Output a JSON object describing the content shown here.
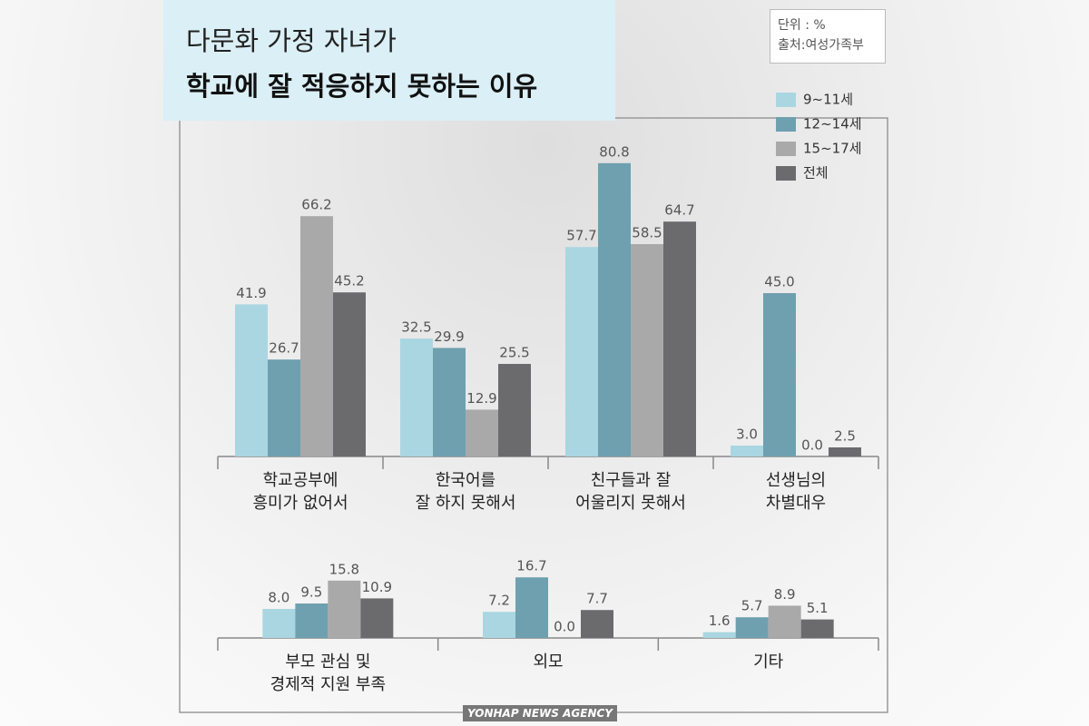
{
  "header": {
    "title_line1": "다문화 가정 자녀가",
    "title_line2": "학교에 잘 적응하지 못하는 이유",
    "unit": "단위 : %",
    "source": "출처:여성가족부"
  },
  "credit": "YONHAP NEWS AGENCY",
  "chart_data": [
    {
      "type": "bar",
      "categories": [
        "학교공부에\n흥미가 없어서",
        "한국어를\n잘 하지 못해서",
        "친구들과 잘\n어울리지 못해서",
        "선생님의\n차별대우"
      ],
      "series": [
        {
          "name": "9~11세",
          "color": "#a9d6e1",
          "values": [
            41.9,
            32.5,
            57.7,
            3.0
          ],
          "value_labels": [
            "41.9",
            "32.5",
            "57.7",
            "3.0"
          ]
        },
        {
          "name": "12~14세",
          "color": "#6fa0af",
          "values": [
            26.7,
            29.9,
            80.8,
            45.0
          ],
          "value_labels": [
            "26.7",
            "29.9",
            "80.8",
            "45.0"
          ]
        },
        {
          "name": "15~17세",
          "color": "#a9a9a9",
          "values": [
            66.2,
            12.9,
            58.5,
            0.0
          ],
          "value_labels": [
            "66.2",
            "12.9",
            "58.5",
            "0.0"
          ]
        },
        {
          "name": "전체",
          "color": "#6b6b6e",
          "values": [
            45.2,
            25.5,
            64.7,
            2.5
          ],
          "value_labels": [
            "45.2",
            "25.5",
            "64.7",
            "2.5"
          ]
        }
      ],
      "ylim": [
        0,
        85
      ],
      "legend": "upper right"
    },
    {
      "type": "bar",
      "categories": [
        "부모 관심 및\n경제적 지원 부족",
        "외모",
        "기타"
      ],
      "series": [
        {
          "color": "#a9d6e1",
          "values": [
            8.0,
            7.2,
            1.6
          ],
          "value_labels": [
            "8.0",
            "7.2",
            "1.6"
          ]
        },
        {
          "color": "#6fa0af",
          "values": [
            9.5,
            16.7,
            5.7
          ],
          "value_labels": [
            "9.5",
            "16.7",
            "5.7"
          ]
        },
        {
          "color": "#a9a9a9",
          "values": [
            15.8,
            0.0,
            8.9
          ],
          "value_labels": [
            "15.8",
            "0.0",
            "8.9"
          ]
        },
        {
          "color": "#6b6b6e",
          "values": [
            10.9,
            7.7,
            5.1
          ],
          "value_labels": [
            "10.9",
            "7.7",
            "5.1"
          ]
        }
      ],
      "ylim": [
        0,
        20
      ]
    }
  ]
}
